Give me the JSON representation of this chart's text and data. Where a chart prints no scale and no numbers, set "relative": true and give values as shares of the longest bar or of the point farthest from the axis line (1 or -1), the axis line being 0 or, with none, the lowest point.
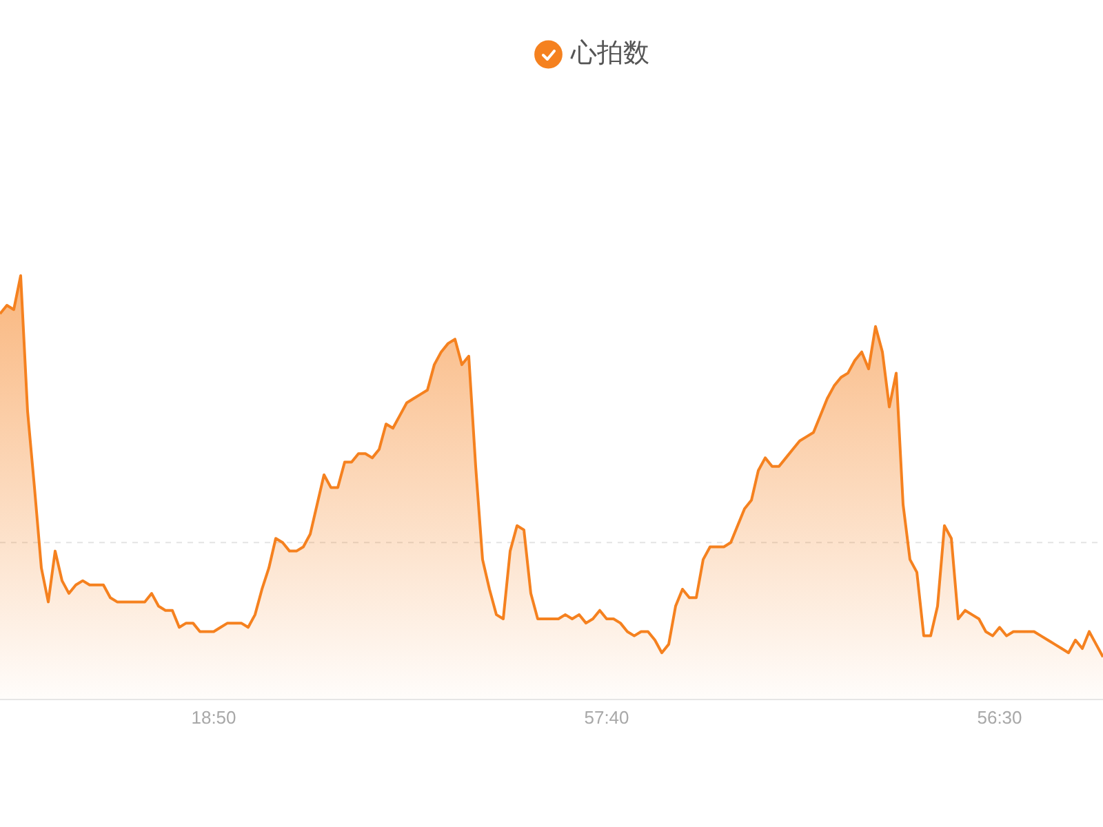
{
  "chart_data": {
    "type": "area",
    "legend": "top",
    "relative": true,
    "marker": "none",
    "ref_lines": [
      {
        "axis": "y",
        "value": 0.37,
        "color": "#e3e3e3",
        "line_style": "dashed"
      }
    ],
    "categories": [
      null,
      null,
      null,
      null,
      null,
      null,
      null,
      null,
      null,
      null,
      null,
      null,
      null,
      null,
      null,
      null,
      null,
      null,
      null,
      null,
      null,
      null,
      null,
      null,
      null,
      null,
      null,
      null,
      null,
      null,
      null,
      "18:50",
      null,
      null,
      null,
      null,
      null,
      null,
      null,
      null,
      null,
      null,
      null,
      null,
      null,
      null,
      null,
      null,
      null,
      null,
      null,
      null,
      null,
      null,
      null,
      null,
      null,
      null,
      null,
      null,
      null,
      null,
      null,
      null,
      null,
      null,
      null,
      null,
      null,
      null,
      null,
      null,
      null,
      null,
      null,
      null,
      null,
      null,
      null,
      null,
      null,
      null,
      null,
      null,
      null,
      null,
      null,
      null,
      "57:40",
      null,
      null,
      null,
      null,
      null,
      null,
      null,
      null,
      null,
      null,
      null,
      null,
      null,
      null,
      null,
      null,
      null,
      null,
      null,
      null,
      null,
      null,
      null,
      null,
      null,
      null,
      null,
      null,
      null,
      null,
      null,
      null,
      null,
      null,
      null,
      null,
      null,
      null,
      null,
      null,
      null,
      null,
      null,
      null,
      null,
      null,
      null,
      null,
      null,
      null,
      null,
      null,
      null,
      null,
      null,
      null,
      "56:30",
      null,
      null,
      null,
      null,
      null,
      null,
      null,
      null,
      null,
      null,
      null,
      null,
      null,
      null,
      null
    ],
    "series": [
      {
        "name": "心拍数",
        "color": "#f5811f",
        "values": [
          0.91,
          0.93,
          0.92,
          1,
          0.68,
          0.5,
          0.31,
          0.23,
          0.35,
          0.28,
          0.25,
          0.27,
          0.28,
          0.27,
          0.27,
          0.27,
          0.24,
          0.23,
          0.23,
          0.23,
          0.23,
          0.23,
          0.25,
          0.22,
          0.21,
          0.21,
          0.17,
          0.18,
          0.18,
          0.16,
          0.16,
          0.16,
          0.17,
          0.18,
          0.18,
          0.18,
          0.17,
          0.2,
          0.26,
          0.31,
          0.38,
          0.37,
          0.35,
          0.35,
          0.36,
          0.39,
          0.46,
          0.53,
          0.5,
          0.5,
          0.56,
          0.56,
          0.58,
          0.58,
          0.57,
          0.59,
          0.65,
          0.64,
          0.67,
          0.7,
          0.71,
          0.72,
          0.73,
          0.79,
          0.82,
          0.84,
          0.85,
          0.79,
          0.81,
          0.55,
          0.33,
          0.26,
          0.2,
          0.19,
          0.35,
          0.41,
          0.4,
          0.25,
          0.19,
          0.19,
          0.19,
          0.19,
          0.2,
          0.19,
          0.2,
          0.18,
          0.19,
          0.21,
          0.19,
          0.19,
          0.18,
          0.16,
          0.15,
          0.16,
          0.16,
          0.14,
          0.11,
          0.13,
          0.22,
          0.26,
          0.24,
          0.24,
          0.33,
          0.36,
          0.36,
          0.36,
          0.37,
          0.41,
          0.45,
          0.47,
          0.54,
          0.57,
          0.55,
          0.55,
          0.57,
          0.59,
          0.61,
          0.62,
          0.63,
          0.67,
          0.71,
          0.74,
          0.76,
          0.77,
          0.8,
          0.82,
          0.78,
          0.88,
          0.82,
          0.69,
          0.77,
          0.46,
          0.33,
          0.3,
          0.15,
          0.15,
          0.22,
          0.41,
          0.38,
          0.19,
          0.21,
          0.2,
          0.19,
          0.16,
          0.15,
          0.17,
          0.15,
          0.16,
          0.16,
          0.16,
          0.16,
          0.15,
          0.14,
          0.13,
          0.12,
          0.11,
          0.14,
          0.12,
          0.16,
          0.13,
          0.1
        ]
      }
    ]
  }
}
